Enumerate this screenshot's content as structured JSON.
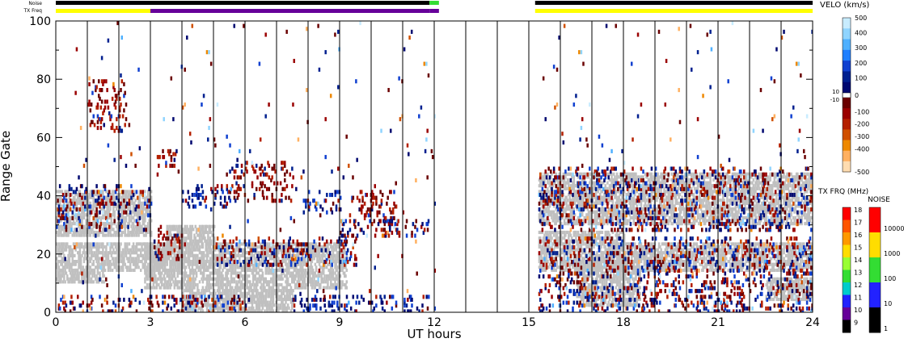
{
  "chart_data": {
    "type": "heatmap",
    "xlabel": "UT hours",
    "ylabel": "Range Gate",
    "xlim": [
      0,
      24
    ],
    "ylim": [
      0,
      100
    ],
    "xticks": [
      0,
      3,
      6,
      9,
      12,
      15,
      18,
      21,
      24
    ],
    "yticks": [
      0,
      20,
      40,
      60,
      80,
      100
    ],
    "scan_boundaries_hours": [
      1,
      2,
      3,
      4,
      5,
      6,
      7,
      8,
      9,
      10,
      11,
      12,
      13,
      14,
      15,
      16,
      17,
      18,
      19,
      20,
      21,
      22,
      23
    ],
    "data_gap_hours": [
      12,
      15.2
    ],
    "header": {
      "noise_label": "Noise",
      "txfreq_label": "TX Freq",
      "noise_segments": [
        {
          "x0": 0,
          "x1": 11.85,
          "color": "#000000"
        },
        {
          "x0": 11.85,
          "x1": 12.15,
          "color": "#33dd33"
        },
        {
          "x0": 15.2,
          "x1": 24,
          "color": "#000000"
        }
      ],
      "txfreq_segments": [
        {
          "x0": 0,
          "x1": 3,
          "color": "#ffff00"
        },
        {
          "x0": 3,
          "x1": 11.85,
          "color": "#660099"
        },
        {
          "x0": 11.85,
          "x1": 12.15,
          "color": "#660099"
        },
        {
          "x0": 15.2,
          "x1": 24,
          "color": "#ffff00"
        }
      ]
    },
    "velo_scale": {
      "title": "VELO (km/s)",
      "ticks": [
        "500",
        "400",
        "300",
        "200",
        "100",
        "0",
        "-100",
        "-200",
        "-300",
        "-400",
        "-500"
      ],
      "gs_labels": [
        "10",
        "-10"
      ],
      "colors": [
        "#c8ecff",
        "#8fd4ff",
        "#4fb0ff",
        "#1f7fff",
        "#1040d0",
        "#00208f",
        "#000870",
        "#6a0000",
        "#9a0000",
        "#b42000",
        "#d05000",
        "#ee8800",
        "#ffb060",
        "#ffdcb0"
      ]
    },
    "txfreq_scale": {
      "title": "TX FRQ (MHz)",
      "ticks": [
        "18",
        "17",
        "16",
        "15",
        "14",
        "13",
        "12",
        "11",
        "10",
        "9"
      ],
      "colors": [
        "#ff0000",
        "#ff5500",
        "#ff9900",
        "#ffdd00",
        "#99ff33",
        "#33dd33",
        "#00cccc",
        "#2222ff",
        "#660099",
        "#000000"
      ]
    },
    "noise_scale": {
      "title": "NOISE",
      "ticks": [
        "10000",
        "1000",
        "100",
        "10",
        "1"
      ],
      "colors": [
        "#ff0000",
        "#ffdd00",
        "#33dd33",
        "#2222ff",
        "#000000"
      ]
    },
    "ground_scatter": [
      {
        "x0": 0,
        "x1": 3,
        "g0": 26,
        "g1": 42
      },
      {
        "x0": 0,
        "x1": 1.5,
        "g0": 10,
        "g1": 24
      },
      {
        "x0": 1.5,
        "x1": 4,
        "g0": 14,
        "g1": 24
      },
      {
        "x0": 3.5,
        "x1": 5,
        "g0": 24,
        "g1": 30
      },
      {
        "x0": 2.8,
        "x1": 9.2,
        "g0": 8,
        "g1": 24
      },
      {
        "x0": 4,
        "x1": 7.5,
        "g0": 0,
        "g1": 8
      },
      {
        "x0": 15.3,
        "x1": 24,
        "g0": 30,
        "g1": 48
      },
      {
        "x0": 15.3,
        "x1": 18,
        "g0": 14,
        "g1": 28
      },
      {
        "x0": 16.5,
        "x1": 18.5,
        "g0": 2,
        "g1": 18
      },
      {
        "x0": 17.5,
        "x1": 24,
        "g0": 14,
        "g1": 24
      },
      {
        "x0": 22.5,
        "x1": 24,
        "g0": 4,
        "g1": 12
      }
    ],
    "echo_regions": [
      {
        "x0": 0,
        "x1": 3,
        "g0": 28,
        "g1": 44,
        "pattern": "mixed"
      },
      {
        "x0": 1.0,
        "x1": 2.2,
        "g0": 62,
        "g1": 80,
        "pattern": "away"
      },
      {
        "x0": 3.1,
        "x1": 4,
        "g0": 18,
        "g1": 30,
        "pattern": "away"
      },
      {
        "x0": 3.2,
        "x1": 3.8,
        "g0": 50,
        "g1": 56,
        "pattern": "away"
      },
      {
        "x0": 4,
        "x1": 5.5,
        "g0": 36,
        "g1": 44,
        "pattern": "toward"
      },
      {
        "x0": 5.5,
        "x1": 7.5,
        "g0": 38,
        "g1": 52,
        "pattern": "away"
      },
      {
        "x0": 5,
        "x1": 9.5,
        "g0": 16,
        "g1": 26,
        "pattern": "mixed"
      },
      {
        "x0": 7.8,
        "x1": 9,
        "g0": 34,
        "g1": 42,
        "pattern": "toward"
      },
      {
        "x0": 9.3,
        "x1": 10.8,
        "g0": 30,
        "g1": 42,
        "pattern": "away"
      },
      {
        "x0": 9,
        "x1": 11.8,
        "g0": 26,
        "g1": 32,
        "pattern": "mixed"
      },
      {
        "x0": 7.5,
        "x1": 11.8,
        "g0": 0,
        "g1": 6,
        "pattern": "toward"
      },
      {
        "x0": 0,
        "x1": 6,
        "g0": 0,
        "g1": 6,
        "pattern": "mixed"
      },
      {
        "x0": 0,
        "x1": 12,
        "g0": 0,
        "g1": 100,
        "pattern": "sparse"
      },
      {
        "x0": 15.3,
        "x1": 24,
        "g0": 28,
        "g1": 50,
        "pattern": "mixed"
      },
      {
        "x0": 15.3,
        "x1": 24,
        "g0": 0,
        "g1": 26,
        "pattern": "mixed"
      },
      {
        "x0": 15.3,
        "x1": 24,
        "g0": 0,
        "g1": 100,
        "pattern": "sparse"
      }
    ]
  }
}
